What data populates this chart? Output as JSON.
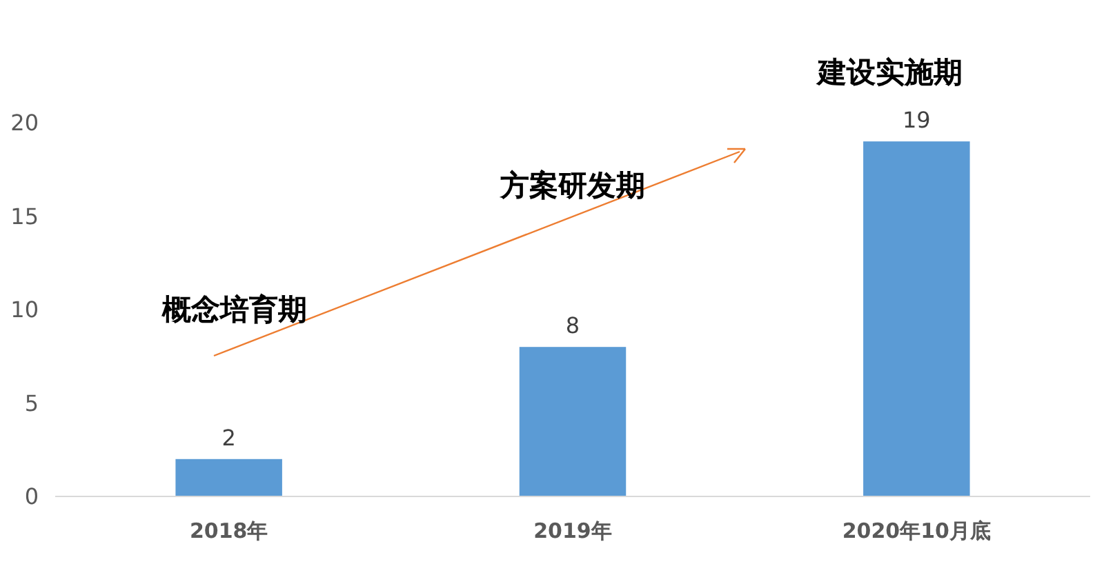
{
  "chart_data": {
    "type": "bar",
    "categories": [
      "2018年",
      "2019年",
      "2020年10月底"
    ],
    "values": [
      2,
      8,
      19
    ],
    "color": "#5b9bd5",
    "ylim": [
      0,
      20
    ],
    "yticks": [
      0,
      5,
      10,
      15,
      20
    ],
    "data_labels": true,
    "grid": false,
    "annotations": [
      "概念培育期",
      "方案研发期",
      "建设实施期"
    ]
  }
}
